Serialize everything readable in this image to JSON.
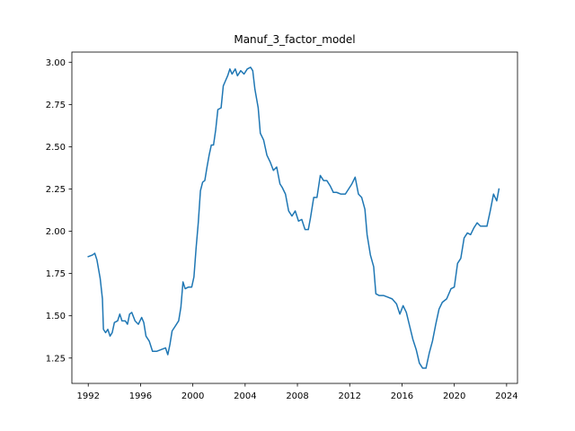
{
  "chart_data": {
    "type": "line",
    "title": "Manuf_3_factor_model",
    "xlabel": "",
    "ylabel": "",
    "x_type": "date",
    "xlim": [
      "1990-10-01",
      "2024-11-01"
    ],
    "ylim": [
      1.1,
      3.06
    ],
    "xticks": [
      {
        "value": "1992-01-01",
        "label": "1992"
      },
      {
        "value": "1996-01-01",
        "label": "1996"
      },
      {
        "value": "2000-01-01",
        "label": "2000"
      },
      {
        "value": "2004-01-01",
        "label": "2004"
      },
      {
        "value": "2008-01-01",
        "label": "2008"
      },
      {
        "value": "2012-01-01",
        "label": "2012"
      },
      {
        "value": "2016-01-01",
        "label": "2016"
      },
      {
        "value": "2020-01-01",
        "label": "2020"
      },
      {
        "value": "2024-01-01",
        "label": "2024"
      }
    ],
    "yticks": [
      {
        "value": 1.25,
        "label": "1.25"
      },
      {
        "value": 1.5,
        "label": "1.50"
      },
      {
        "value": 1.75,
        "label": "1.75"
      },
      {
        "value": 2.0,
        "label": "2.00"
      },
      {
        "value": 2.25,
        "label": "2.25"
      },
      {
        "value": 2.5,
        "label": "2.50"
      },
      {
        "value": 2.75,
        "label": "2.75"
      },
      {
        "value": 3.0,
        "label": "3.00"
      }
    ],
    "grid": false,
    "series": [
      {
        "name": "",
        "color": "#1f77b4",
        "points": [
          [
            "1992-01-01",
            1.85
          ],
          [
            "1992-05-01",
            1.86
          ],
          [
            "1992-07-01",
            1.87
          ],
          [
            "1992-09-01",
            1.83
          ],
          [
            "1992-12-01",
            1.72
          ],
          [
            "1993-02-01",
            1.6
          ],
          [
            "1993-03-01",
            1.42
          ],
          [
            "1993-05-01",
            1.4
          ],
          [
            "1993-07-01",
            1.42
          ],
          [
            "1993-09-01",
            1.38
          ],
          [
            "1993-11-01",
            1.4
          ],
          [
            "1994-01-01",
            1.46
          ],
          [
            "1994-04-01",
            1.47
          ],
          [
            "1994-06-01",
            1.51
          ],
          [
            "1994-08-01",
            1.47
          ],
          [
            "1994-11-01",
            1.47
          ],
          [
            "1995-01-01",
            1.45
          ],
          [
            "1995-03-01",
            1.51
          ],
          [
            "1995-05-01",
            1.52
          ],
          [
            "1995-08-01",
            1.47
          ],
          [
            "1995-11-01",
            1.45
          ],
          [
            "1996-02-01",
            1.49
          ],
          [
            "1996-04-01",
            1.46
          ],
          [
            "1996-06-01",
            1.38
          ],
          [
            "1996-09-01",
            1.35
          ],
          [
            "1996-12-01",
            1.29
          ],
          [
            "1997-04-01",
            1.29
          ],
          [
            "1997-08-01",
            1.3
          ],
          [
            "1997-12-01",
            1.31
          ],
          [
            "1998-02-01",
            1.27
          ],
          [
            "1998-04-01",
            1.33
          ],
          [
            "1998-06-01",
            1.41
          ],
          [
            "1998-09-01",
            1.44
          ],
          [
            "1998-12-01",
            1.47
          ],
          [
            "1999-02-01",
            1.55
          ],
          [
            "1999-04-01",
            1.7
          ],
          [
            "1999-06-01",
            1.66
          ],
          [
            "1999-09-01",
            1.67
          ],
          [
            "1999-12-01",
            1.67
          ],
          [
            "2000-02-01",
            1.73
          ],
          [
            "2000-04-01",
            1.9
          ],
          [
            "2000-06-01",
            2.05
          ],
          [
            "2000-08-01",
            2.24
          ],
          [
            "2000-10-01",
            2.29
          ],
          [
            "2000-12-01",
            2.3
          ],
          [
            "2001-02-01",
            2.38
          ],
          [
            "2001-04-01",
            2.45
          ],
          [
            "2001-06-01",
            2.51
          ],
          [
            "2001-08-01",
            2.51
          ],
          [
            "2001-10-01",
            2.6
          ],
          [
            "2001-12-01",
            2.72
          ],
          [
            "2002-03-01",
            2.73
          ],
          [
            "2002-05-01",
            2.86
          ],
          [
            "2002-07-01",
            2.89
          ],
          [
            "2002-09-01",
            2.92
          ],
          [
            "2002-11-01",
            2.96
          ],
          [
            "2003-01-01",
            2.93
          ],
          [
            "2003-04-01",
            2.96
          ],
          [
            "2003-06-01",
            2.92
          ],
          [
            "2003-09-01",
            2.95
          ],
          [
            "2003-12-01",
            2.93
          ],
          [
            "2004-03-01",
            2.96
          ],
          [
            "2004-06-01",
            2.97
          ],
          [
            "2004-08-01",
            2.95
          ],
          [
            "2004-10-01",
            2.84
          ],
          [
            "2005-01-01",
            2.73
          ],
          [
            "2005-03-01",
            2.58
          ],
          [
            "2005-06-01",
            2.54
          ],
          [
            "2005-09-01",
            2.45
          ],
          [
            "2005-12-01",
            2.41
          ],
          [
            "2006-03-01",
            2.36
          ],
          [
            "2006-06-01",
            2.38
          ],
          [
            "2006-09-01",
            2.28
          ],
          [
            "2006-11-01",
            2.26
          ],
          [
            "2007-02-01",
            2.22
          ],
          [
            "2007-05-01",
            2.12
          ],
          [
            "2007-08-01",
            2.09
          ],
          [
            "2007-11-01",
            2.12
          ],
          [
            "2008-02-01",
            2.06
          ],
          [
            "2008-05-01",
            2.07
          ],
          [
            "2008-08-01",
            2.01
          ],
          [
            "2008-11-01",
            2.01
          ],
          [
            "2009-01-01",
            2.08
          ],
          [
            "2009-04-01",
            2.2
          ],
          [
            "2009-07-01",
            2.2
          ],
          [
            "2009-10-01",
            2.33
          ],
          [
            "2010-01-01",
            2.3
          ],
          [
            "2010-04-01",
            2.3
          ],
          [
            "2010-07-01",
            2.27
          ],
          [
            "2010-10-01",
            2.23
          ],
          [
            "2011-01-01",
            2.23
          ],
          [
            "2011-05-01",
            2.22
          ],
          [
            "2011-09-01",
            2.22
          ],
          [
            "2011-12-01",
            2.25
          ],
          [
            "2012-03-01",
            2.28
          ],
          [
            "2012-06-01",
            2.32
          ],
          [
            "2012-09-01",
            2.22
          ],
          [
            "2012-12-01",
            2.2
          ],
          [
            "2013-03-01",
            2.13
          ],
          [
            "2013-05-01",
            1.98
          ],
          [
            "2013-08-01",
            1.86
          ],
          [
            "2013-11-01",
            1.79
          ],
          [
            "2014-01-01",
            1.63
          ],
          [
            "2014-04-01",
            1.62
          ],
          [
            "2014-08-01",
            1.62
          ],
          [
            "2014-12-01",
            1.61
          ],
          [
            "2015-04-01",
            1.6
          ],
          [
            "2015-08-01",
            1.57
          ],
          [
            "2015-11-01",
            1.51
          ],
          [
            "2016-02-01",
            1.56
          ],
          [
            "2016-05-01",
            1.52
          ],
          [
            "2016-08-01",
            1.44
          ],
          [
            "2016-11-01",
            1.36
          ],
          [
            "2017-02-01",
            1.3
          ],
          [
            "2017-05-01",
            1.22
          ],
          [
            "2017-08-01",
            1.19
          ],
          [
            "2017-11-01",
            1.19
          ],
          [
            "2018-02-01",
            1.28
          ],
          [
            "2018-05-01",
            1.35
          ],
          [
            "2018-08-01",
            1.45
          ],
          [
            "2018-11-01",
            1.54
          ],
          [
            "2019-02-01",
            1.58
          ],
          [
            "2019-06-01",
            1.6
          ],
          [
            "2019-10-01",
            1.66
          ],
          [
            "2020-01-01",
            1.67
          ],
          [
            "2020-04-01",
            1.81
          ],
          [
            "2020-07-01",
            1.84
          ],
          [
            "2020-10-01",
            1.96
          ],
          [
            "2021-01-01",
            1.99
          ],
          [
            "2021-04-01",
            1.98
          ],
          [
            "2021-07-01",
            2.02
          ],
          [
            "2021-10-01",
            2.05
          ],
          [
            "2022-01-01",
            2.03
          ],
          [
            "2022-04-01",
            2.03
          ],
          [
            "2022-07-01",
            2.03
          ],
          [
            "2022-10-01",
            2.12
          ],
          [
            "2023-01-01",
            2.22
          ],
          [
            "2023-04-01",
            2.18
          ],
          [
            "2023-06-01",
            2.25
          ]
        ]
      }
    ]
  }
}
